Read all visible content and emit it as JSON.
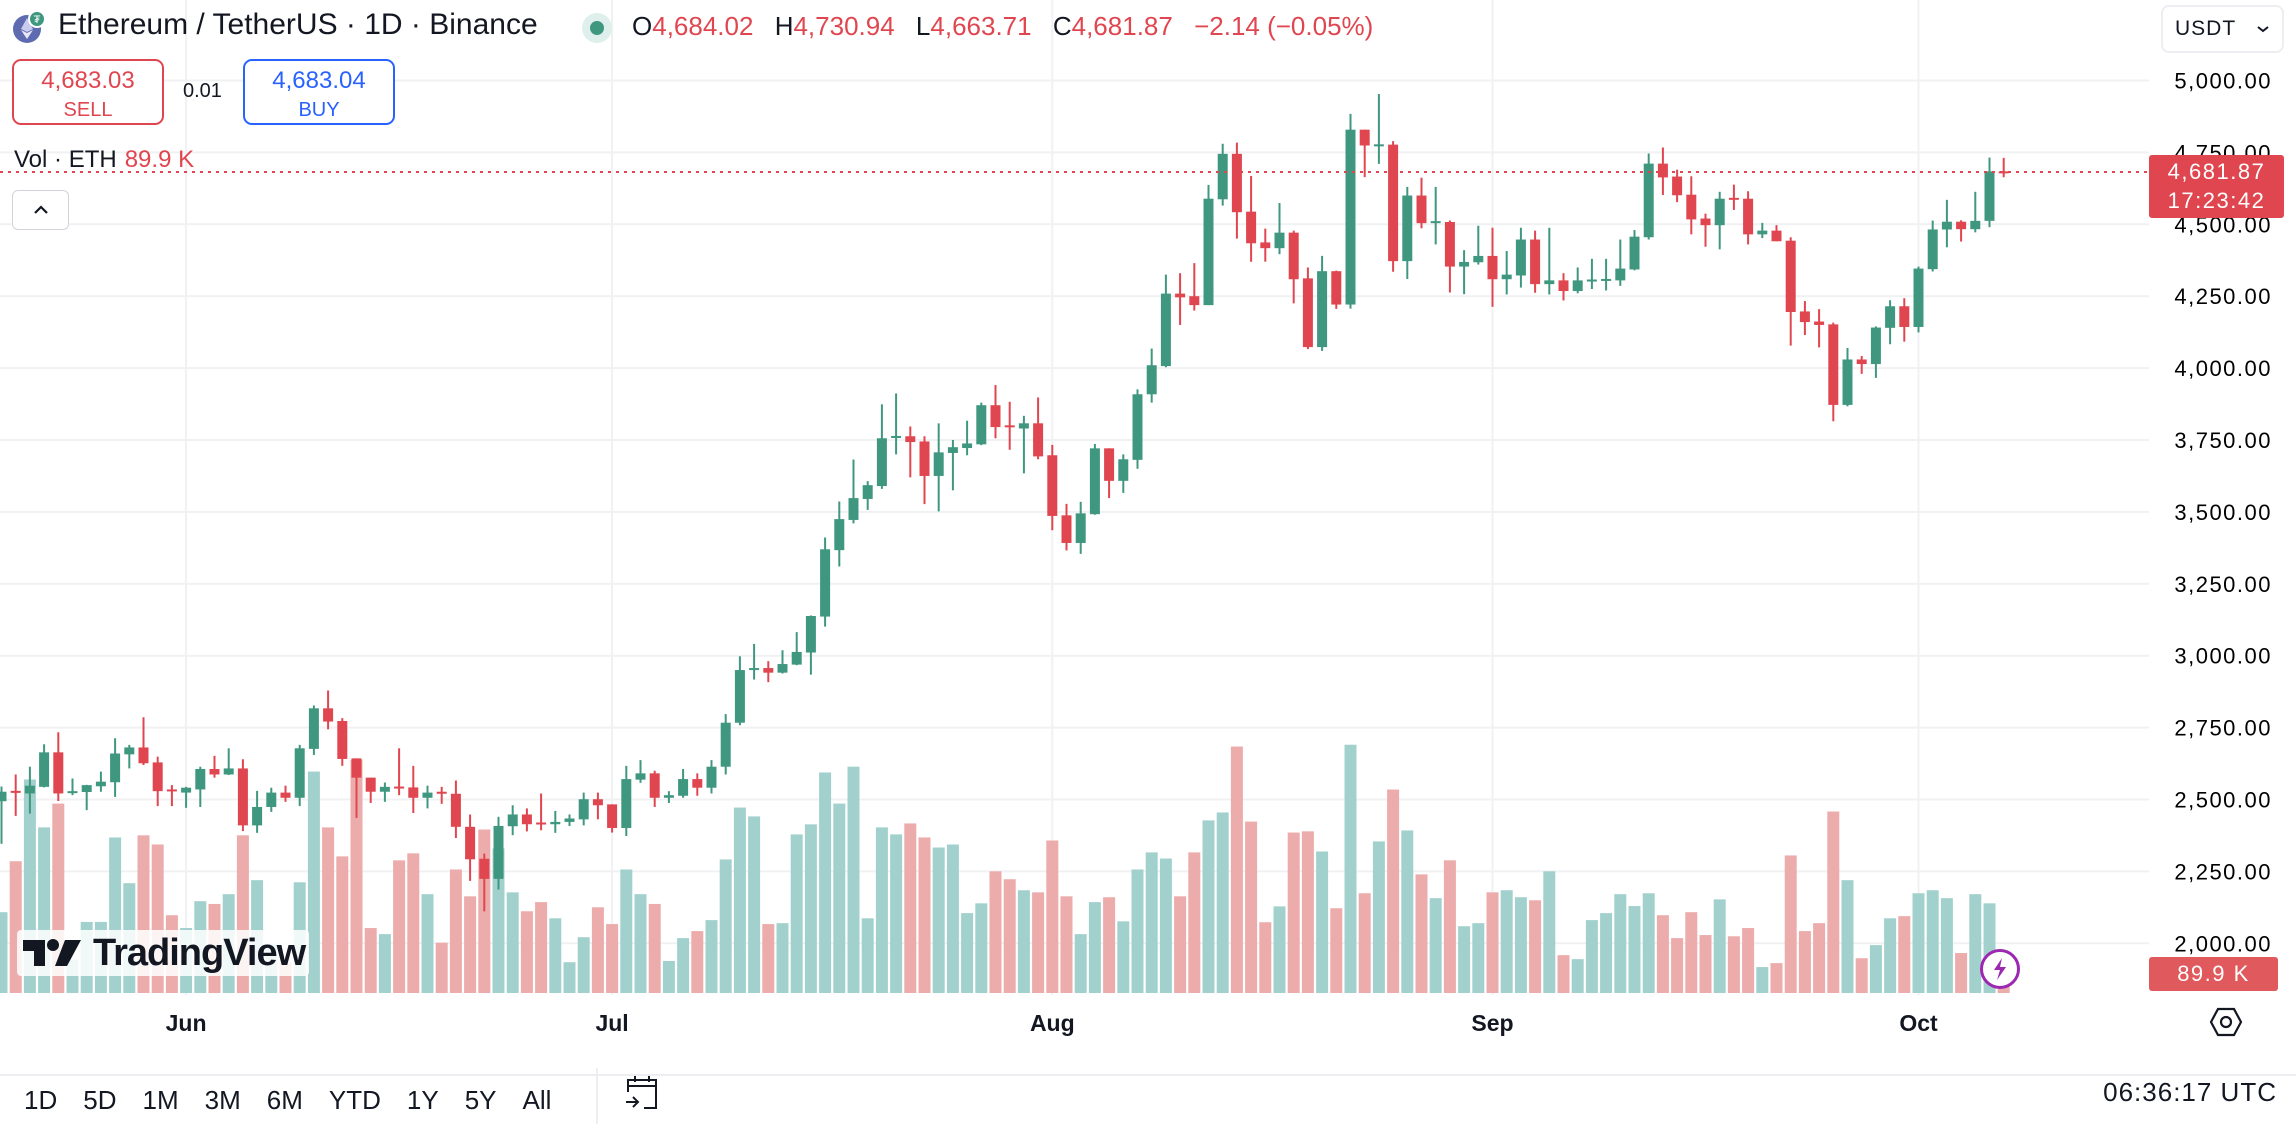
{
  "header": {
    "title": "Ethereum / TetherUS · 1D · Binance",
    "status": "market-open",
    "ohlc": {
      "o_label": "O",
      "o": "4,684.02",
      "h_label": "H",
      "h": "4,730.94",
      "l_label": "L",
      "l": "4,663.71",
      "c_label": "C",
      "c": "4,681.87",
      "change": "−2.14 (−0.05%)"
    }
  },
  "trade": {
    "sell_price": "4,683.03",
    "sell_label": "SELL",
    "spread": "0.01",
    "buy_price": "4,683.04",
    "buy_label": "BUY"
  },
  "volume_legend": {
    "label": "Vol · ETH",
    "value": "89.9 K"
  },
  "currency_select": {
    "value": "USDT"
  },
  "price_axis": {
    "labels": [
      "5,000.00",
      "4,750.00",
      "4,500.00",
      "4,250.00",
      "4,000.00",
      "3,750.00",
      "3,500.00",
      "3,250.00",
      "3,000.00",
      "2,750.00",
      "2,500.00",
      "2,250.00",
      "2,000.00"
    ],
    "levels": [
      5000,
      4750,
      4500,
      4250,
      4000,
      3750,
      3500,
      3250,
      3000,
      2750,
      2500,
      2250,
      2000
    ]
  },
  "last_price": {
    "price": "4,681.87",
    "countdown": "17:23:42",
    "value": 4681.87
  },
  "volume_tag": "89.9 K",
  "time_axis": {
    "months": [
      {
        "label": "Jun",
        "date": "Jun 1"
      },
      {
        "label": "Jul",
        "date": "Jul 1"
      },
      {
        "label": "Aug",
        "date": "Aug 1"
      },
      {
        "label": "Sep",
        "date": "Sep 1"
      },
      {
        "label": "Oct",
        "date": "Oct 1"
      }
    ]
  },
  "footer": {
    "ranges": [
      "1D",
      "5D",
      "1M",
      "3M",
      "6M",
      "YTD",
      "1Y",
      "5Y",
      "All"
    ],
    "clock": "06:36:17 UTC"
  },
  "logo_text": "TradingView",
  "colors": {
    "up": "#3f9780",
    "down": "#e0464f",
    "up_volume": "#a2d1cd",
    "down_volume": "#ecacab",
    "sell": "#e0464f",
    "buy": "#2962ff",
    "grid": "#f0f1f3"
  },
  "chart_data": {
    "type": "candlestick",
    "ylim": [
      2000,
      5000
    ],
    "volume_unit": "K ETH",
    "grid": true,
    "dates": [
      "May 19",
      "May 20",
      "May 21",
      "May 22",
      "May 23",
      "May 24",
      "May 25",
      "May 26",
      "May 27",
      "May 28",
      "May 29",
      "May 30",
      "May 31",
      "Jun 1",
      "Jun 2",
      "Jun 3",
      "Jun 4",
      "Jun 5",
      "Jun 6",
      "Jun 7",
      "Jun 8",
      "Jun 9",
      "Jun 10",
      "Jun 11",
      "Jun 12",
      "Jun 13",
      "Jun 14",
      "Jun 15",
      "Jun 16",
      "Jun 17",
      "Jun 18",
      "Jun 19",
      "Jun 20",
      "Jun 21",
      "Jun 22",
      "Jun 23",
      "Jun 24",
      "Jun 25",
      "Jun 26",
      "Jun 27",
      "Jun 28",
      "Jun 29",
      "Jun 30",
      "Jul 1",
      "Jul 2",
      "Jul 3",
      "Jul 4",
      "Jul 5",
      "Jul 6",
      "Jul 7",
      "Jul 8",
      "Jul 9",
      "Jul 10",
      "Jul 11",
      "Jul 12",
      "Jul 13",
      "Jul 14",
      "Jul 15",
      "Jul 16",
      "Jul 17",
      "Jul 18",
      "Jul 19",
      "Jul 20",
      "Jul 21",
      "Jul 22",
      "Jul 23",
      "Jul 24",
      "Jul 25",
      "Jul 26",
      "Jul 27",
      "Jul 28",
      "Jul 29",
      "Jul 30",
      "Jul 31",
      "Aug 1",
      "Aug 2",
      "Aug 3",
      "Aug 4",
      "Aug 5",
      "Aug 6",
      "Aug 7",
      "Aug 8",
      "Aug 9",
      "Aug 10",
      "Aug 11",
      "Aug 12",
      "Aug 13",
      "Aug 14",
      "Aug 15",
      "Aug 16",
      "Aug 17",
      "Aug 18",
      "Aug 19",
      "Aug 20",
      "Aug 21",
      "Aug 22",
      "Aug 23",
      "Aug 24",
      "Aug 25",
      "Aug 26",
      "Aug 27",
      "Aug 28",
      "Aug 29",
      "Aug 30",
      "Aug 31",
      "Sep 1",
      "Sep 2",
      "Sep 3",
      "Sep 4",
      "Sep 5",
      "Sep 6",
      "Sep 7",
      "Sep 8",
      "Sep 9",
      "Sep 10",
      "Sep 11",
      "Sep 12",
      "Sep 13",
      "Sep 14",
      "Sep 15",
      "Sep 16",
      "Sep 17",
      "Sep 18",
      "Sep 19",
      "Sep 20",
      "Sep 21",
      "Sep 22",
      "Sep 23",
      "Sep 24",
      "Sep 25",
      "Sep 26",
      "Sep 27",
      "Sep 28",
      "Sep 29",
      "Sep 30",
      "Oct 1",
      "Oct 2",
      "Oct 3",
      "Oct 4",
      "Oct 5",
      "Oct 6",
      "Oct 7"
    ],
    "open": [
      2494,
      2530,
      2521,
      2544,
      2664,
      2524,
      2526,
      2546,
      2560,
      2657,
      2681,
      2629,
      2535,
      2524,
      2535,
      2606,
      2587,
      2608,
      2410,
      2474,
      2524,
      2506,
      2676,
      2817,
      2773,
      2643,
      2576,
      2527,
      2545,
      2542,
      2506,
      2527,
      2520,
      2405,
      2294,
      2224,
      2407,
      2448,
      2420,
      2414,
      2422,
      2431,
      2501,
      2483,
      2401,
      2569,
      2591,
      2506,
      2513,
      2571,
      2541,
      2614,
      2767,
      2951,
      2957,
      2941,
      2969,
      3011,
      3136,
      3367,
      3472,
      3545,
      3590,
      3758,
      3763,
      3745,
      3625,
      3705,
      3722,
      3735,
      3871,
      3801,
      3790,
      3808,
      3697,
      3488,
      3392,
      3492,
      3721,
      3608,
      3681,
      3909,
      4007,
      4259,
      4250,
      4219,
      4587,
      4745,
      4544,
      4437,
      4417,
      4471,
      4312,
      4073,
      4337,
      4221,
      4829,
      4774,
      4777,
      4372,
      4600,
      4507,
      4508,
      4353,
      4368,
      4390,
      4309,
      4322,
      4447,
      4292,
      4305,
      4268,
      4303,
      4308,
      4305,
      4343,
      4455,
      4711,
      4666,
      4603,
      4520,
      4497,
      4592,
      4589,
      4465,
      4478,
      4443,
      4197,
      4162,
      4152,
      3872,
      4030,
      4014,
      4140,
      4215,
      4143,
      4344,
      4482,
      4509,
      4483,
      4512,
      4684.02
    ],
    "high": [
      2545,
      2587,
      2614,
      2692,
      2734,
      2573,
      2551,
      2597,
      2713,
      2690,
      2786,
      2649,
      2550,
      2544,
      2614,
      2652,
      2678,
      2640,
      2530,
      2541,
      2548,
      2690,
      2827,
      2879,
      2783,
      2643,
      2576,
      2559,
      2678,
      2617,
      2548,
      2544,
      2566,
      2448,
      2312,
      2440,
      2480,
      2469,
      2521,
      2460,
      2448,
      2524,
      2524,
      2483,
      2617,
      2637,
      2600,
      2529,
      2606,
      2591,
      2637,
      2797,
      2998,
      3041,
      2981,
      3019,
      3082,
      3140,
      3411,
      3536,
      3682,
      3607,
      3874,
      3912,
      3797,
      3763,
      3808,
      3750,
      3817,
      3880,
      3941,
      3883,
      3834,
      3898,
      3733,
      3528,
      3535,
      3736,
      3721,
      3700,
      3926,
      4068,
      4325,
      4330,
      4365,
      4637,
      4780,
      4784,
      4668,
      4485,
      4574,
      4478,
      4350,
      4390,
      4339,
      4884,
      4829,
      4953,
      4789,
      4630,
      4662,
      4630,
      4513,
      4410,
      4495,
      4488,
      4407,
      4488,
      4478,
      4488,
      4330,
      4350,
      4380,
      4380,
      4447,
      4480,
      4746,
      4767,
      4690,
      4667,
      4537,
      4613,
      4638,
      4615,
      4505,
      4497,
      4455,
      4233,
      4205,
      4158,
      4070,
      4042,
      4145,
      4236,
      4243,
      4353,
      4513,
      4585,
      4514,
      4613,
      4732,
      4730.94
    ],
    "low": [
      2346,
      2443,
      2451,
      2542,
      2495,
      2515,
      2463,
      2527,
      2509,
      2608,
      2620,
      2477,
      2477,
      2471,
      2474,
      2576,
      2585,
      2390,
      2384,
      2457,
      2492,
      2477,
      2655,
      2744,
      2617,
      2436,
      2488,
      2492,
      2515,
      2453,
      2469,
      2485,
      2366,
      2217,
      2111,
      2187,
      2376,
      2389,
      2393,
      2384,
      2408,
      2410,
      2431,
      2385,
      2373,
      2558,
      2474,
      2488,
      2506,
      2513,
      2521,
      2587,
      2758,
      2917,
      2908,
      2938,
      2967,
      2934,
      3101,
      3310,
      3460,
      3507,
      3580,
      3700,
      3620,
      3527,
      3502,
      3575,
      3697,
      3732,
      3756,
      3716,
      3634,
      3683,
      3436,
      3366,
      3354,
      3490,
      3548,
      3566,
      3650,
      3880,
      4003,
      4150,
      4200,
      4219,
      4565,
      4450,
      4370,
      4370,
      4396,
      4225,
      4066,
      4060,
      4206,
      4207,
      4664,
      4710,
      4335,
      4310,
      4486,
      4430,
      4263,
      4257,
      4360,
      4213,
      4256,
      4280,
      4262,
      4256,
      4235,
      4260,
      4275,
      4270,
      4286,
      4340,
      4447,
      4602,
      4577,
      4465,
      4422,
      4413,
      4550,
      4430,
      4452,
      4441,
      4078,
      4115,
      4072,
      3815,
      3867,
      3980,
      3966,
      4083,
      4092,
      4124,
      4336,
      4420,
      4440,
      4472,
      4490,
      4663.71
    ],
    "close": [
      2527,
      2528,
      2548,
      2664,
      2521,
      2529,
      2550,
      2562,
      2660,
      2681,
      2626,
      2529,
      2529,
      2541,
      2606,
      2587,
      2608,
      2410,
      2474,
      2524,
      2506,
      2678,
      2817,
      2771,
      2641,
      2576,
      2527,
      2544,
      2541,
      2506,
      2524,
      2524,
      2405,
      2292,
      2224,
      2408,
      2448,
      2414,
      2414,
      2422,
      2434,
      2501,
      2480,
      2401,
      2571,
      2591,
      2506,
      2515,
      2571,
      2541,
      2614,
      2767,
      2950,
      2957,
      2941,
      2971,
      3013,
      3138,
      3370,
      3475,
      3548,
      3593,
      3756,
      3764,
      3743,
      3625,
      3707,
      3725,
      3738,
      3871,
      3795,
      3795,
      3808,
      3693,
      3486,
      3392,
      3495,
      3721,
      3608,
      3683,
      3909,
      4010,
      4259,
      4246,
      4219,
      4589,
      4745,
      4542,
      4434,
      4417,
      4471,
      4309,
      4073,
      4337,
      4221,
      4829,
      4774,
      4778,
      4372,
      4600,
      4504,
      4511,
      4353,
      4369,
      4390,
      4309,
      4325,
      4447,
      4292,
      4305,
      4268,
      4305,
      4308,
      4310,
      4346,
      4457,
      4711,
      4663,
      4601,
      4517,
      4497,
      4589,
      4588,
      4465,
      4478,
      4441,
      4195,
      4160,
      4150,
      3872,
      4030,
      4014,
      4141,
      4215,
      4143,
      4346,
      4482,
      4509,
      4483,
      4512,
      4684.02,
      4681.87
    ],
    "volume": [
      265,
      432,
      700,
      543,
      621,
      110,
      233,
      233,
      510,
      360,
      517,
      487,
      255,
      213,
      301,
      292,
      324,
      517,
      370,
      160,
      100,
      363,
      726,
      543,
      448,
      765,
      213,
      193,
      435,
      458,
      324,
      165,
      405,
      317,
      536,
      474,
      330,
      268,
      298,
      245,
      101,
      183,
      281,
      226,
      405,
      324,
      292,
      105,
      180,
      203,
      239,
      438,
      608,
      579,
      226,
      229,
      520,
      553,
      723,
      621,
      742,
      245,
      543,
      520,
      556,
      510,
      477,
      487,
      262,
      294,
      399,
      373,
      337,
      330,
      500,
      317,
      193,
      298,
      314,
      235,
      405,
      461,
      441,
      317,
      461,
      566,
      592,
      808,
      562,
      232,
      284,
      526,
      530,
      464,
      278,
      814,
      327,
      497,
      667,
      533,
      389,
      311,
      435,
      219,
      229,
      330,
      337,
      314,
      304,
      399,
      124,
      111,
      239,
      262,
      324,
      285,
      327,
      255,
      180,
      265,
      190,
      307,
      186,
      213,
      85,
      98,
      451,
      203,
      229,
      595,
      370,
      114,
      157,
      245,
      252,
      327,
      337,
      311,
      131,
      324,
      294,
      89.9
    ]
  }
}
